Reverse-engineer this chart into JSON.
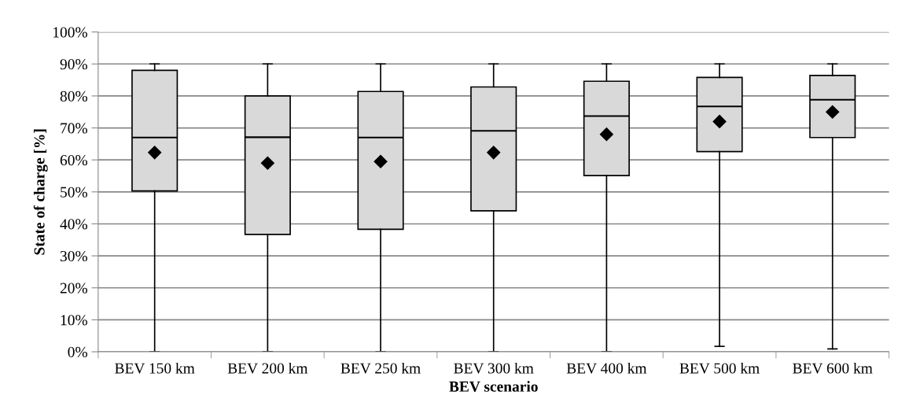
{
  "chart_data": {
    "type": "box",
    "xlabel": "BEV scenario",
    "ylabel": "State of charge [%]",
    "categories": [
      "BEV 150 km",
      "BEV 200 km",
      "BEV 250 km",
      "BEV 300 km",
      "BEV 400 km",
      "BEV 500 km",
      "BEV 600 km"
    ],
    "boxes": [
      {
        "low": 0,
        "q1": 50.3,
        "median": 67,
        "q3": 88,
        "high": 90,
        "mean": 62.3
      },
      {
        "low": 0,
        "q1": 36.7,
        "median": 67.1,
        "q3": 80,
        "high": 90,
        "mean": 59
      },
      {
        "low": 0,
        "q1": 38.3,
        "median": 67,
        "q3": 81.4,
        "high": 90,
        "mean": 59.5
      },
      {
        "low": 0,
        "q1": 44.1,
        "median": 69.1,
        "q3": 82.8,
        "high": 90,
        "mean": 62.3
      },
      {
        "low": 0,
        "q1": 55.1,
        "median": 73.7,
        "q3": 84.6,
        "high": 90,
        "mean": 68
      },
      {
        "low": 1.7,
        "q1": 62.6,
        "median": 76.7,
        "q3": 85.8,
        "high": 90,
        "mean": 72
      },
      {
        "low": 0.9,
        "q1": 67,
        "median": 78.8,
        "q3": 86.4,
        "high": 90,
        "mean": 75
      }
    ],
    "color": "#d9d9d9",
    "marker": "diamond",
    "ylim": [
      0,
      100
    ],
    "yticks": [
      {
        "value": 0,
        "label": "0%"
      },
      {
        "value": 10,
        "label": "10%"
      },
      {
        "value": 20,
        "label": "20%"
      },
      {
        "value": 30,
        "label": "30%"
      },
      {
        "value": 40,
        "label": "40%"
      },
      {
        "value": 50,
        "label": "50%"
      },
      {
        "value": 60,
        "label": "60%"
      },
      {
        "value": 70,
        "label": "70%"
      },
      {
        "value": 80,
        "label": "80%"
      },
      {
        "value": 90,
        "label": "90%"
      },
      {
        "value": 100,
        "label": "100%"
      }
    ],
    "grid": "y"
  }
}
